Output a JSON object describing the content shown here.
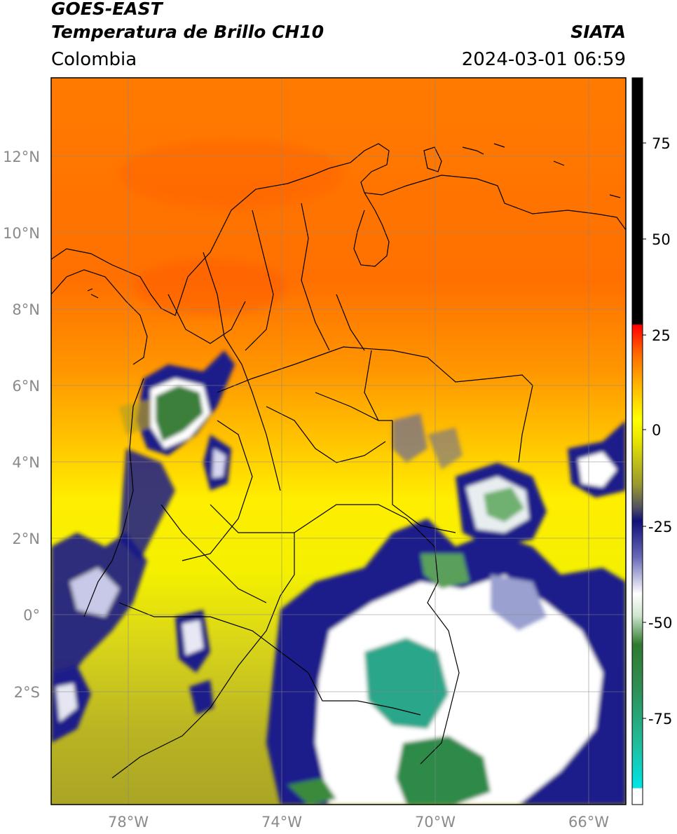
{
  "header": {
    "satellite": "GOES-EAST",
    "product": "Temperatura de Brillo CH10",
    "organization": "SIATA",
    "region": "Colombia",
    "datetime": "2024-03-01 06:59"
  },
  "map": {
    "lat_ticks": [
      "12°N",
      "10°N",
      "8°N",
      "6°N",
      "4°N",
      "2°N",
      "0°",
      "2°S"
    ],
    "lon_ticks": [
      "78°W",
      "74°W",
      "70°W",
      "66°W"
    ],
    "grid": true,
    "colorbar_labels": [
      "75",
      "50",
      "25",
      "0",
      "-25",
      "-50",
      "-75"
    ],
    "colorbar_colors": [
      "#ffffff",
      "#00e0e0",
      "#2aa88a",
      "#2f7a2f",
      "#ffffff",
      "#1a1a8a",
      "#b0ad22",
      "#ffff00",
      "#ff8c00",
      "#ff0000",
      "#000000"
    ]
  }
}
